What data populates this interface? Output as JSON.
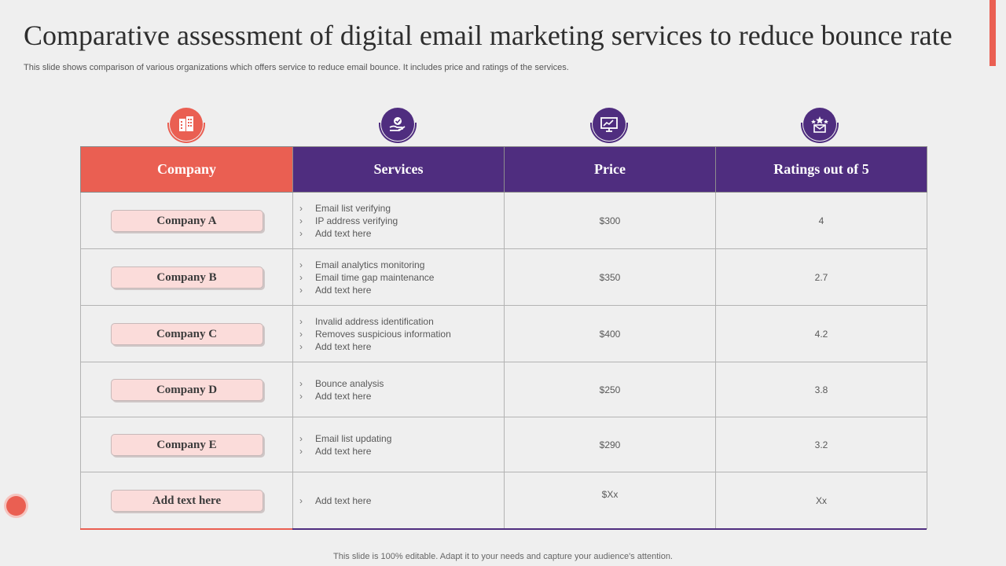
{
  "title": "Comparative assessment of digital email marketing services to reduce bounce rate",
  "subtitle": "This slide shows comparison of various organizations which offers service to reduce email bounce. It includes price and ratings of the services.",
  "table": {
    "headers": [
      "Company",
      "Services",
      "Price",
      "Ratings out of 5"
    ],
    "rows": [
      {
        "company": "Company A",
        "services": [
          "Email list verifying",
          "IP address verifying",
          "Add text here"
        ],
        "price": "$300",
        "rating": "4"
      },
      {
        "company": "Company B",
        "services": [
          "Email analytics monitoring",
          "Email time gap maintenance",
          "Add text here"
        ],
        "price": "$350",
        "rating": "2.7"
      },
      {
        "company": "Company C",
        "services": [
          "Invalid  address identification",
          "Removes  suspicious information",
          "Add text here"
        ],
        "price": "$400",
        "rating": "4.2"
      },
      {
        "company": "Company D",
        "services": [
          "Bounce analysis",
          "Add text here"
        ],
        "price": "$250",
        "rating": "3.8"
      },
      {
        "company": "Company E",
        "services": [
          "Email list updating",
          "Add text here"
        ],
        "price": "$290",
        "rating": "3.2"
      },
      {
        "company": "Add text here",
        "services": [
          "Add text here"
        ],
        "price": "$Xx",
        "rating": "Xx"
      }
    ]
  },
  "icons": [
    "building-icon",
    "hand-badge-icon",
    "presentation-chart-icon",
    "rating-stars-icon"
  ],
  "colors": {
    "accent_red": "#ea5f52",
    "accent_purple": "#4f2d7f"
  },
  "footer": "This slide is 100% editable. Adapt it to your needs and capture your audience's attention."
}
